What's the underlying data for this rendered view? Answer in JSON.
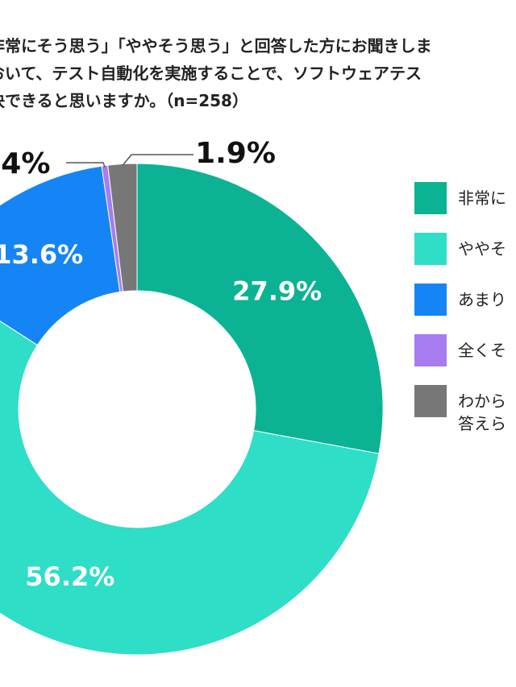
{
  "title_lines": [
    "非常にそう思う」「ややそう思う」と回答した方にお聞きしま",
    "おいて、テスト自動化を実施することで、ソフトウェアテス",
    "決できると思いますか。（n=258）"
  ],
  "chart_data": {
    "type": "pie",
    "categories": [
      "非常に",
      "ややそ",
      "あまり",
      "全くそ",
      "わから\n答えら"
    ],
    "values": [
      27.9,
      56.2,
      13.6,
      0.4,
      1.9
    ],
    "labels": [
      "27.9%",
      "56.2%",
      "13.6%",
      ".4%",
      "1.9%"
    ],
    "colors": [
      "#0bb394",
      "#2edec6",
      "#1585f5",
      "#a77cf0",
      "#777777"
    ],
    "donut": true,
    "legend_position": "right"
  }
}
